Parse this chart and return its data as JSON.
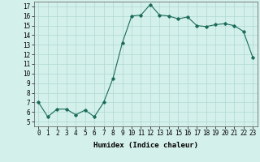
{
  "x": [
    0,
    1,
    2,
    3,
    4,
    5,
    6,
    7,
    8,
    9,
    10,
    11,
    12,
    13,
    14,
    15,
    16,
    17,
    18,
    19,
    20,
    21,
    22,
    23
  ],
  "y": [
    7.0,
    5.5,
    6.3,
    6.3,
    5.7,
    6.2,
    5.5,
    7.0,
    9.5,
    13.2,
    16.0,
    16.1,
    17.2,
    16.1,
    16.0,
    15.7,
    15.9,
    15.0,
    14.9,
    15.1,
    15.2,
    15.0,
    14.4,
    11.7
  ],
  "xlabel": "Humidex (Indice chaleur)",
  "line_color": "#1a6b5a",
  "bg_color": "#d4f0eb",
  "grid_color": "#aed8d2",
  "xlim": [
    -0.5,
    23.5
  ],
  "ylim": [
    4.5,
    17.5
  ],
  "yticks": [
    5,
    6,
    7,
    8,
    9,
    10,
    11,
    12,
    13,
    14,
    15,
    16,
    17
  ],
  "xticks": [
    0,
    1,
    2,
    3,
    4,
    5,
    6,
    7,
    8,
    9,
    10,
    11,
    12,
    13,
    14,
    15,
    16,
    17,
    18,
    19,
    20,
    21,
    22,
    23
  ],
  "tick_fontsize": 5.5,
  "label_fontsize": 6.5
}
